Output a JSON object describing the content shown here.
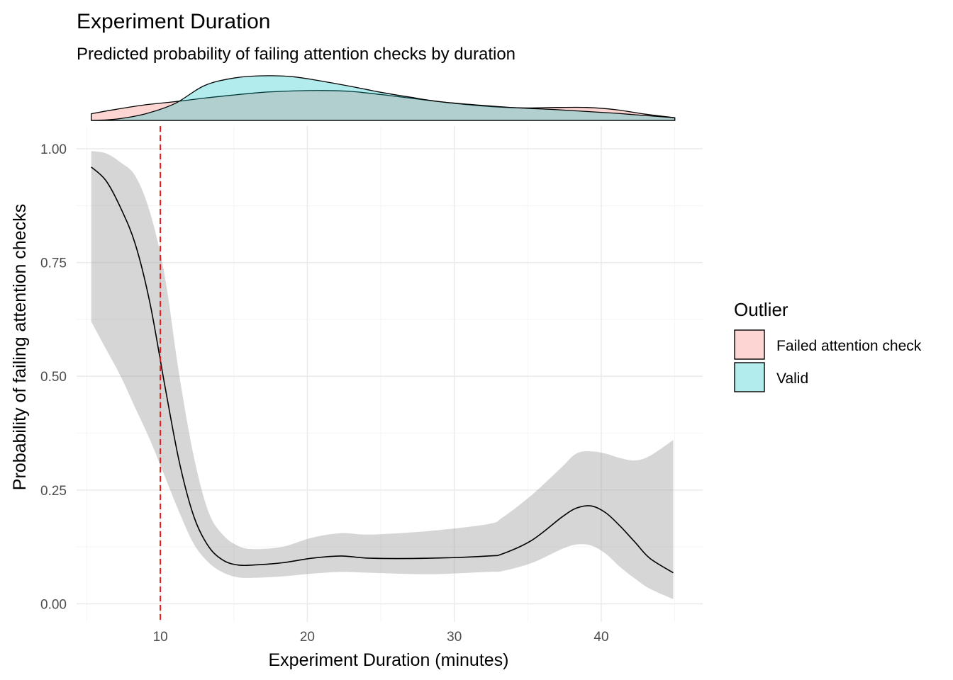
{
  "chart_data": {
    "type": "line",
    "title": "Experiment Duration",
    "subtitle": "Predicted probability of failing attention checks by duration",
    "xlabel": "Experiment Duration (minutes)",
    "ylabel": "Probability of failing attention checks",
    "xlim": [
      4.3,
      46.9
    ],
    "ylim": [
      -0.04,
      1.05
    ],
    "x_ticks": [
      10,
      20,
      30,
      40
    ],
    "x_tick_labels": [
      "10",
      "20",
      "30",
      "40"
    ],
    "y_ticks": [
      0,
      0.25,
      0.5,
      0.75,
      1.0
    ],
    "y_tick_labels": [
      "0.00",
      "0.25",
      "0.50",
      "0.75",
      "1.00"
    ],
    "grid": true,
    "reference_line": {
      "x": 10,
      "color": "#e41a1c",
      "style": "dashed"
    },
    "fit": {
      "x": [
        5.3,
        6.3,
        7.3,
        8.3,
        9.3,
        10.3,
        11.3,
        12.3,
        13.3,
        14.3,
        15.3,
        16.3,
        18.3,
        20.3,
        22.3,
        24.3,
        28.3,
        32.3,
        33.3,
        35.3,
        37.3,
        38.3,
        39.3,
        40.3,
        41.3,
        42.3,
        43.3,
        44.9
      ],
      "y": [
        0.96,
        0.93,
        0.87,
        0.79,
        0.66,
        0.48,
        0.31,
        0.19,
        0.125,
        0.095,
        0.085,
        0.085,
        0.09,
        0.1,
        0.105,
        0.1,
        0.1,
        0.105,
        0.11,
        0.14,
        0.19,
        0.21,
        0.215,
        0.2,
        0.17,
        0.135,
        0.1,
        0.068
      ],
      "lower": [
        0.62,
        0.56,
        0.5,
        0.43,
        0.36,
        0.28,
        0.2,
        0.13,
        0.09,
        0.068,
        0.058,
        0.057,
        0.06,
        0.066,
        0.07,
        0.068,
        0.065,
        0.07,
        0.072,
        0.09,
        0.12,
        0.13,
        0.128,
        0.11,
        0.08,
        0.055,
        0.033,
        0.01
      ],
      "upper": [
        0.995,
        0.99,
        0.97,
        0.94,
        0.86,
        0.72,
        0.5,
        0.32,
        0.2,
        0.15,
        0.127,
        0.12,
        0.125,
        0.145,
        0.155,
        0.152,
        0.16,
        0.175,
        0.19,
        0.24,
        0.3,
        0.33,
        0.335,
        0.33,
        0.32,
        0.315,
        0.325,
        0.36
      ]
    },
    "density": {
      "x": [
        5.3,
        7,
        9,
        11,
        13,
        15,
        17,
        19,
        21,
        23,
        25,
        27,
        29,
        31,
        33,
        35,
        37,
        39,
        41,
        43,
        45
      ],
      "series": [
        {
          "name": "Failed attention check",
          "color": "#F8766D",
          "values": [
            0.15,
            0.25,
            0.35,
            0.42,
            0.5,
            0.57,
            0.63,
            0.66,
            0.67,
            0.65,
            0.58,
            0.5,
            0.42,
            0.35,
            0.3,
            0.28,
            0.29,
            0.29,
            0.24,
            0.14,
            0.06
          ]
        },
        {
          "name": "Valid",
          "color": "#00BFC4",
          "values": [
            0.0,
            0.03,
            0.15,
            0.38,
            0.78,
            0.95,
            1.0,
            0.98,
            0.88,
            0.76,
            0.63,
            0.52,
            0.42,
            0.36,
            0.31,
            0.27,
            0.24,
            0.2,
            0.16,
            0.11,
            0.06
          ]
        }
      ]
    },
    "legend": {
      "title": "Outlier",
      "position": "right",
      "items": [
        {
          "label": "Failed attention check",
          "color": "#F8766D"
        },
        {
          "label": "Valid",
          "color": "#00BFC4"
        }
      ]
    }
  }
}
